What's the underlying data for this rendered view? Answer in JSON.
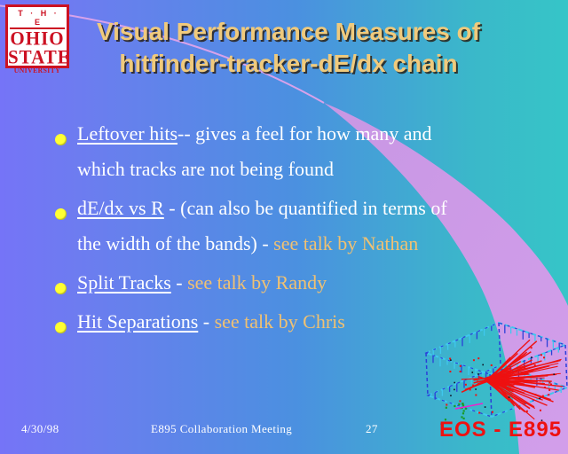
{
  "slide": {
    "logo": {
      "line1": "T · H · E",
      "line2": "OHIO",
      "line3": "STATE",
      "line4": "UNIVERSITY"
    },
    "title": {
      "line1": "Visual Performance Measures of",
      "line2": "hitfinder-tracker-dE/dx chain"
    },
    "bullets": [
      {
        "lead": "Leftover hits",
        "lines": [
          "-- gives a feel for how many and",
          "which tracks are not being found"
        ],
        "highlight": ""
      },
      {
        "lead": "dE/dx vs R",
        "lines": [
          " - (can also be quantified in terms of",
          "the width of the bands) - "
        ],
        "highlight": "see talk by Nathan"
      },
      {
        "lead": "Split Tracks",
        "lines": [
          " - "
        ],
        "highlight": "see talk by Randy"
      },
      {
        "lead": "Hit Separations",
        "lines": [
          " - "
        ],
        "highlight": "see talk by Chris"
      }
    ],
    "event_display": {
      "caption": "EOS - E895"
    },
    "footer": {
      "date": "4/30/98",
      "title": "E895 Collaboration Meeting",
      "page": "27"
    },
    "colors": {
      "background_left": "#7574f7",
      "background_right": "#36c5c8",
      "swoosh": "#c897e4",
      "swoosh_light": "#d29eea",
      "title_text": "#f0ca7c",
      "body_text": "#ffffff",
      "highlight_text": "#f0c172",
      "bullet": "#ffff33",
      "logo_red": "#cc1122",
      "caption_red": "#ee1111",
      "track_red": "#ee1111",
      "wire_blue": "#2b3fd8",
      "wire_cyan": "#3fc8ee"
    }
  }
}
